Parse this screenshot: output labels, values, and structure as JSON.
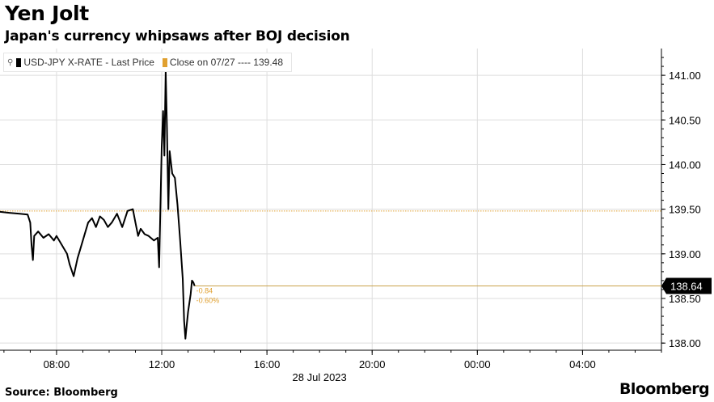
{
  "title": "Yen Jolt",
  "subtitle": "Japan's currency whipsaws after BOJ decision",
  "source": "Source: Bloomberg",
  "brand": "Bloomberg",
  "legend": {
    "pin_icon": "pin-icon",
    "series_label": "USD-JPY X-RATE - Last Price",
    "close_label": "Close on 07/27  ----  139.48"
  },
  "colors": {
    "series": "#000000",
    "close": "#e0a030",
    "grid": "#dddddd"
  },
  "chart_data": {
    "type": "line",
    "title": "Yen Jolt",
    "subtitle": "Japan's currency whipsaws after BOJ decision",
    "xlabel": "28 Jul 2023",
    "ylabel": "",
    "x_tick_labels": [
      "08:00",
      "12:00",
      "16:00",
      "20:00",
      "00:00",
      "04:00"
    ],
    "y_ticks": [
      138.0,
      138.5,
      139.0,
      139.5,
      140.0,
      140.5,
      141.0
    ],
    "y_tick_labels": [
      "138.00",
      "138.50",
      "139.00",
      "139.50",
      "140.00",
      "140.50",
      "141.00"
    ],
    "ylim": [
      137.92,
      141.3
    ],
    "xlim_hours": [
      5.85,
      31.0
    ],
    "grid": true,
    "legend_position": "top-left",
    "series": [
      {
        "name": "USD-JPY X-RATE - Last Price",
        "x_hours": [
          5.85,
          6.2,
          6.6,
          6.9,
          7.0,
          7.05,
          7.1,
          7.15,
          7.3,
          7.5,
          7.7,
          7.9,
          8.0,
          8.2,
          8.4,
          8.5,
          8.65,
          8.8,
          8.9,
          9.05,
          9.2,
          9.35,
          9.5,
          9.65,
          9.8,
          9.95,
          10.1,
          10.3,
          10.5,
          10.7,
          10.9,
          11.0,
          11.1,
          11.2,
          11.35,
          11.5,
          11.7,
          11.85,
          11.9,
          12.0,
          12.05,
          12.1,
          12.15,
          12.2,
          12.25,
          12.3,
          12.4,
          12.5,
          12.6,
          12.7,
          12.8,
          12.85,
          12.9,
          12.95,
          13.0,
          13.1,
          13.15,
          13.2,
          13.25
        ],
        "values": [
          139.47,
          139.46,
          139.45,
          139.44,
          139.35,
          139.1,
          138.93,
          139.2,
          139.25,
          139.18,
          139.22,
          139.15,
          139.2,
          139.1,
          139.0,
          138.88,
          138.75,
          138.95,
          139.05,
          139.2,
          139.35,
          139.4,
          139.3,
          139.42,
          139.38,
          139.3,
          139.35,
          139.45,
          139.3,
          139.48,
          139.5,
          139.35,
          139.2,
          139.28,
          139.22,
          139.2,
          139.15,
          139.18,
          138.85,
          140.2,
          140.6,
          140.1,
          141.05,
          140.4,
          139.5,
          140.15,
          139.9,
          139.85,
          139.55,
          139.15,
          138.72,
          138.25,
          138.05,
          138.2,
          138.35,
          138.55,
          138.7,
          138.68,
          138.64
        ]
      },
      {
        "name": "Close on 07/27",
        "value": 139.48
      }
    ],
    "last_value": "138.64",
    "annotations": [
      "-0.84",
      "-0.60%"
    ]
  }
}
